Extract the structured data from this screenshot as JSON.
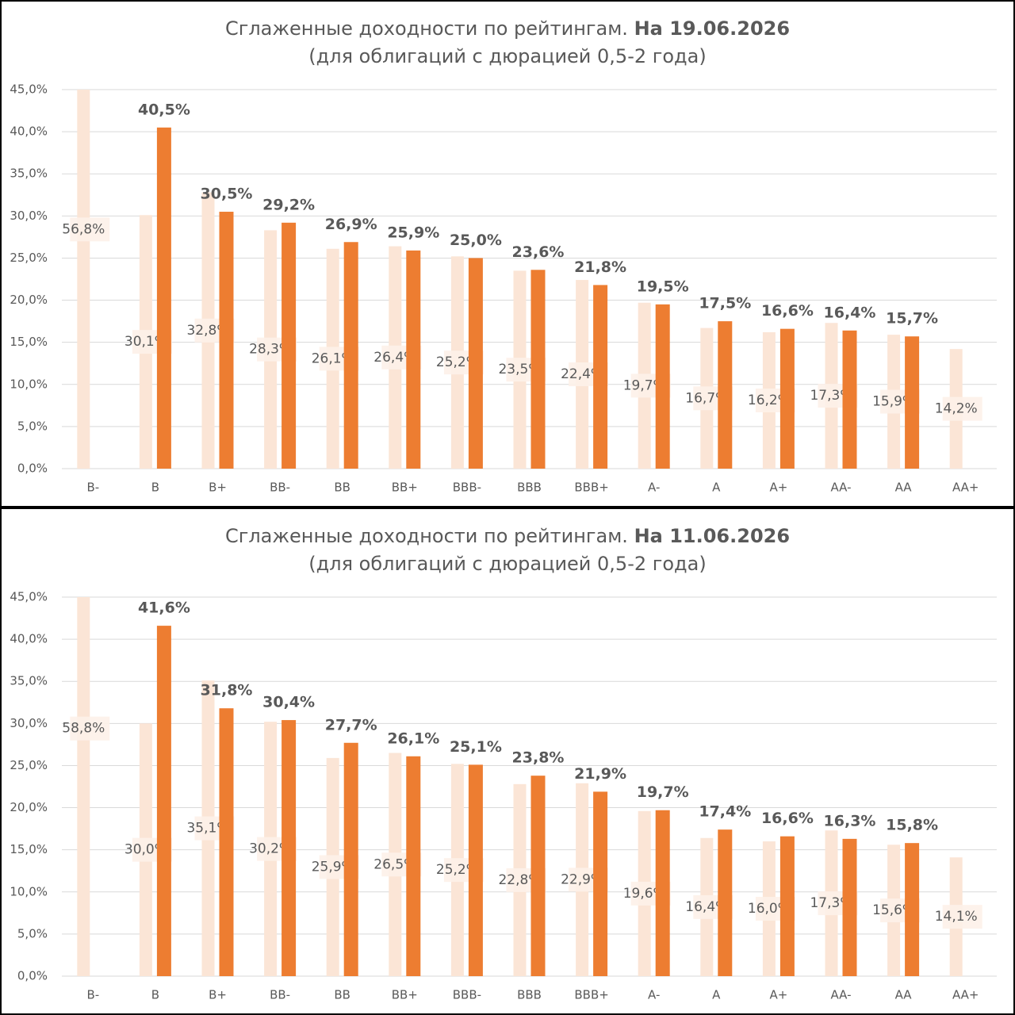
{
  "chart_data": [
    {
      "type": "bar",
      "title": "Сглаженные доходности по рейтингам.",
      "title_bold": "На 19.06.2026",
      "subtitle": "(для облигаций с дюрацией 0,5-2 года)",
      "categories": [
        "B-",
        "B",
        "B+",
        "BB-",
        "BB",
        "BB+",
        "BBB-",
        "BBB",
        "BBB+",
        "A-",
        "A",
        "A+",
        "AA-",
        "AA",
        "AA+"
      ],
      "series": [
        {
          "color": "#fbe5d6",
          "values": [
            56.8,
            30.1,
            32.8,
            28.3,
            26.1,
            26.4,
            25.2,
            23.5,
            22.4,
            19.7,
            16.7,
            16.2,
            17.3,
            15.9,
            14.2
          ],
          "value_labels": [
            "56,8%",
            "30,1%",
            "32,8%",
            "28,3%",
            "26,1%",
            "26,4%",
            "25,2%",
            "23,5%",
            "22,4%",
            "19,7%",
            "16,7%",
            "16,2%",
            "17,3%",
            "15,9%",
            "14,2%"
          ]
        },
        {
          "color": "#ed7d31",
          "values": [
            null,
            40.5,
            30.5,
            29.2,
            26.9,
            25.9,
            25.0,
            23.6,
            21.8,
            19.5,
            17.5,
            16.6,
            16.4,
            15.7,
            null
          ],
          "value_labels": [
            null,
            "40,5%",
            "30,5%",
            "29,2%",
            "26,9%",
            "25,9%",
            "25,0%",
            "23,6%",
            "21,8%",
            "19,5%",
            "17,5%",
            "16,6%",
            "16,4%",
            "15,7%",
            null
          ]
        }
      ],
      "ylim": [
        0,
        45
      ],
      "yticks": [
        {
          "value": 0,
          "label": "0,0%"
        },
        {
          "value": 5,
          "label": "5,0%"
        },
        {
          "value": 10,
          "label": "10,0%"
        },
        {
          "value": 15,
          "label": "15,0%"
        },
        {
          "value": 20,
          "label": "20,0%"
        },
        {
          "value": 25,
          "label": "25,0%"
        },
        {
          "value": 30,
          "label": "30,0%"
        },
        {
          "value": 35,
          "label": "35,0%"
        },
        {
          "value": 40,
          "label": "40,0%"
        },
        {
          "value": 45,
          "label": "45,0%"
        }
      ],
      "grid": true
    },
    {
      "type": "bar",
      "title": "Сглаженные доходности по рейтингам.",
      "title_bold": "На 11.06.2026",
      "subtitle": "(для облигаций с дюрацией 0,5-2 года)",
      "categories": [
        "B-",
        "B",
        "B+",
        "BB-",
        "BB",
        "BB+",
        "BBB-",
        "BBB",
        "BBB+",
        "A-",
        "A",
        "A+",
        "AA-",
        "AA",
        "AA+"
      ],
      "series": [
        {
          "color": "#fbe5d6",
          "values": [
            58.8,
            30.0,
            35.1,
            30.2,
            25.9,
            26.5,
            25.2,
            22.8,
            22.9,
            19.6,
            16.4,
            16.0,
            17.3,
            15.6,
            14.1
          ],
          "value_labels": [
            "58,8%",
            "30,0%",
            "35,1%",
            "30,2%",
            "25,9%",
            "26,5%",
            "25,2%",
            "22,8%",
            "22,9%",
            "19,6%",
            "16,4%",
            "16,0%",
            "17,3%",
            "15,6%",
            "14,1%"
          ]
        },
        {
          "color": "#ed7d31",
          "values": [
            null,
            41.6,
            31.8,
            30.4,
            27.7,
            26.1,
            25.1,
            23.8,
            21.9,
            19.7,
            17.4,
            16.6,
            16.3,
            15.8,
            null
          ],
          "value_labels": [
            null,
            "41,6%",
            "31,8%",
            "30,4%",
            "27,7%",
            "26,1%",
            "25,1%",
            "23,8%",
            "21,9%",
            "19,7%",
            "17,4%",
            "16,6%",
            "16,3%",
            "15,8%",
            null
          ]
        }
      ],
      "ylim": [
        0,
        45
      ],
      "yticks": [
        {
          "value": 0,
          "label": "0,0%"
        },
        {
          "value": 5,
          "label": "5,0%"
        },
        {
          "value": 10,
          "label": "10,0%"
        },
        {
          "value": 15,
          "label": "15,0%"
        },
        {
          "value": 20,
          "label": "20,0%"
        },
        {
          "value": 25,
          "label": "25,0%"
        },
        {
          "value": 30,
          "label": "30,0%"
        },
        {
          "value": 35,
          "label": "35,0%"
        },
        {
          "value": 40,
          "label": "40,0%"
        },
        {
          "value": 45,
          "label": "45,0%"
        }
      ],
      "grid": true
    }
  ]
}
